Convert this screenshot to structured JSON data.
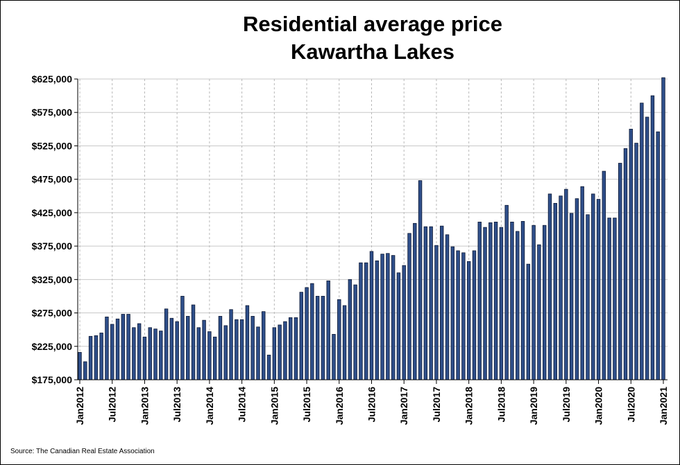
{
  "chart_data": {
    "type": "bar",
    "title": "Residential average price",
    "subtitle": "Kawartha Lakes",
    "xlabel": "",
    "ylabel": "",
    "source": "Source: The Canadian Real Estate Association",
    "ylim": [
      175000,
      625000
    ],
    "y_ticks": [
      "$175,000",
      "$225,000",
      "$275,000",
      "$325,000",
      "$375,000",
      "$425,000",
      "$475,000",
      "$525,000",
      "$575,000",
      "$625,000"
    ],
    "x_ticks": [
      "Jan2012",
      "Jul2012",
      "Jan2013",
      "Jul2013",
      "Jan2014",
      "Jul2014",
      "Jan2015",
      "Jul2015",
      "Jan2016",
      "Jul2016",
      "Jan2017",
      "Jul2017",
      "Jan2018",
      "Jul2018",
      "Jan2019",
      "Jul2019",
      "Jan2020",
      "Jul2020",
      "Jan2021"
    ],
    "grid": "horizontal solid, vertical dashed",
    "bar_color": "#2f4f8a",
    "bar_edge_color": "#0b1733",
    "series": [
      {
        "values": [
          216000,
          202000,
          240000,
          241000,
          245000,
          269000,
          258000,
          266000,
          273000,
          273000,
          253000,
          259000,
          239000,
          253000,
          251000,
          248000,
          281000,
          267000,
          262000,
          300000,
          270000,
          287000,
          253000,
          264000,
          247000,
          239000,
          270000,
          256000,
          280000,
          265000,
          265000,
          286000,
          270000,
          254000,
          277000,
          212000,
          253000,
          257000,
          262000,
          268000,
          268000,
          306000,
          313000,
          319000,
          300000,
          300000,
          323000,
          243000,
          295000,
          286000,
          325000,
          317000,
          350000,
          350000,
          367000,
          353000,
          363000,
          364000,
          361000,
          335000,
          346000,
          394000,
          409000,
          473000,
          404000,
          404000,
          376000,
          405000,
          392000,
          374000,
          368000,
          365000,
          352000,
          368000,
          411000,
          403000,
          410000,
          411000,
          403000,
          436000,
          411000,
          397000,
          412000,
          348000,
          406000,
          377000,
          406000,
          453000,
          439000,
          450000,
          460000,
          424000,
          446000,
          464000,
          422000,
          453000,
          445000,
          487000,
          417000,
          417000,
          499000,
          521000,
          550000,
          529000,
          589000,
          568000,
          600000,
          546000,
          627000
        ]
      }
    ]
  }
}
